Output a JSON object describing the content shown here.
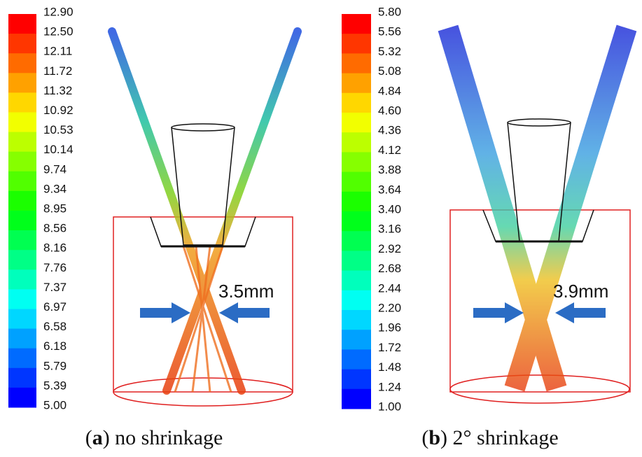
{
  "panels": [
    {
      "colorbar": {
        "labels": [
          "12.90",
          "12.50",
          "12.11",
          "11.72",
          "11.32",
          "10.92",
          "10.53",
          "10.14",
          "9.74",
          "9.34",
          "8.95",
          "8.56",
          "8.16",
          "7.76",
          "7.37",
          "6.97",
          "6.58",
          "6.18",
          "5.79",
          "5.39",
          "5.00"
        ]
      },
      "annotation": "3.5mm",
      "caption": {
        "open": "(",
        "label": "a",
        "text": ") no shrinkage"
      }
    },
    {
      "colorbar": {
        "labels": [
          "5.80",
          "5.56",
          "5.32",
          "5.08",
          "4.84",
          "4.60",
          "4.36",
          "4.12",
          "3.88",
          "3.64",
          "3.40",
          "3.16",
          "2.92",
          "2.68",
          "2.44",
          "2.20",
          "1.96",
          "1.72",
          "1.48",
          "1.24",
          "1.00"
        ]
      },
      "annotation": "3.9mm",
      "caption": {
        "open": "(",
        "label": "b",
        "text": ") 2° shrinkage"
      }
    }
  ]
}
